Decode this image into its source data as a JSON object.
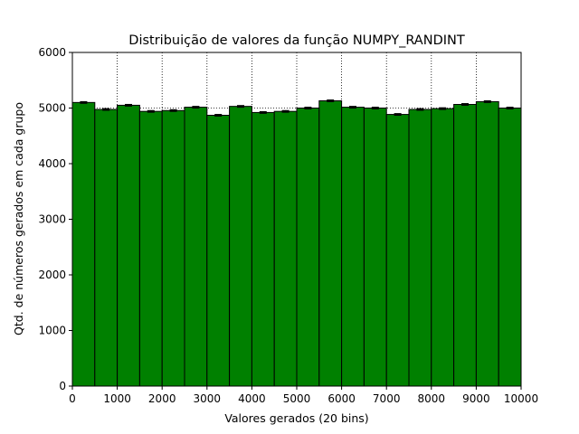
{
  "chart_data": {
    "type": "bar",
    "title": "Distribuição de valores da função NUMPY_RANDINT",
    "xlabel": "Valores gerados (20 bins)",
    "ylabel": "Qtd. de números gerados em cada grupo",
    "xlim": [
      0,
      10000
    ],
    "ylim": [
      0,
      6000
    ],
    "x_ticks": [
      "0",
      "1000",
      "2000",
      "3000",
      "4000",
      "5000",
      "6000",
      "7000",
      "8000",
      "9000",
      "10000"
    ],
    "y_ticks": [
      "0",
      "1000",
      "2000",
      "3000",
      "4000",
      "5000",
      "6000"
    ],
    "bin_edges": [
      0,
      500,
      1000,
      1500,
      2000,
      2500,
      3000,
      3500,
      4000,
      4500,
      5000,
      5500,
      6000,
      6500,
      7000,
      7500,
      8000,
      8500,
      9000,
      9500,
      10000
    ],
    "values": [
      5100,
      4975,
      5050,
      4940,
      4955,
      5015,
      4870,
      5030,
      4920,
      4940,
      5000,
      5130,
      5015,
      5000,
      4885,
      4975,
      4990,
      5065,
      5115,
      5000
    ],
    "error": [
      14,
      14,
      14,
      14,
      14,
      14,
      14,
      14,
      14,
      14,
      14,
      14,
      14,
      14,
      14,
      14,
      14,
      14,
      14,
      14
    ],
    "grid": true,
    "grid_style": "dotted",
    "colors": {
      "bar_fill": "#008000",
      "bar_edge": "#000000",
      "grid": "#000000",
      "errorbar": "#000000"
    }
  }
}
